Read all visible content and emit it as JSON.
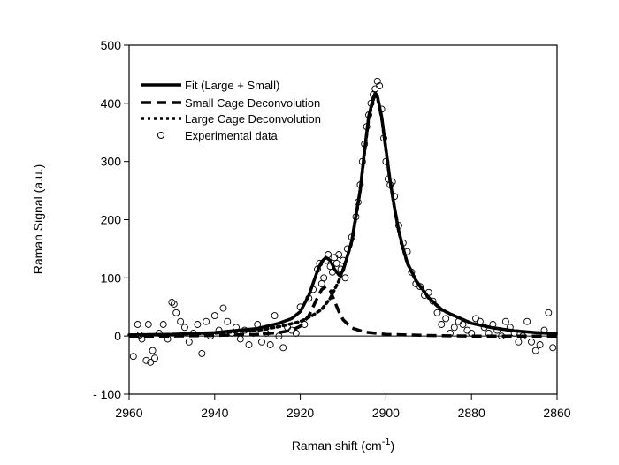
{
  "chart_data": {
    "type": "line",
    "title": "",
    "xlabel": "Raman shift (cm",
    "xlabel_sup": "-1",
    "xlabel_close": ")",
    "ylabel": "Raman Signal (a.u.)",
    "xlim": [
      2960,
      2860
    ],
    "ylim": [
      -100,
      500
    ],
    "x_ticks": [
      2960,
      2940,
      2920,
      2900,
      2880,
      2860
    ],
    "y_ticks": [
      -100,
      0,
      100,
      200,
      300,
      400,
      500
    ],
    "x_tick_labels": [
      "2960",
      "2940",
      "2920",
      "2900",
      "2880",
      "2860"
    ],
    "y_tick_labels": [
      "- 100",
      "0",
      "100",
      "200",
      "300",
      "400",
      "500"
    ],
    "grid": false,
    "legend_position": "top-left",
    "legend": [
      {
        "label": "Fit (Large + Small)",
        "style": "solid"
      },
      {
        "label": "Small Cage Deconvolution",
        "style": "dashed"
      },
      {
        "label": "Large Cage Deconvolution",
        "style": "dotted"
      },
      {
        "label": "Experimental data",
        "style": "marker"
      }
    ],
    "series": [
      {
        "name": "Small Cage Deconvolution",
        "style": "dashed",
        "x": [
          2960,
          2950,
          2940,
          2930,
          2925,
          2922,
          2920,
          2918,
          2916,
          2915,
          2914,
          2913,
          2912,
          2911,
          2910,
          2908,
          2905,
          2900,
          2890,
          2880,
          2870,
          2860
        ],
        "y": [
          0,
          0,
          1,
          3,
          6,
          10,
          17,
          35,
          66,
          80,
          85,
          78,
          60,
          42,
          28,
          14,
          7,
          3,
          1,
          0,
          0,
          0
        ]
      },
      {
        "name": "Large Cage Deconvolution",
        "style": "dotted",
        "x": [
          2960,
          2950,
          2940,
          2930,
          2925,
          2920,
          2917,
          2915,
          2913,
          2911,
          2910,
          2908,
          2906,
          2905,
          2904,
          2903,
          2902.5,
          2902,
          2901,
          2900,
          2899,
          2898,
          2897,
          2896,
          2895,
          2893,
          2890,
          2887,
          2885,
          2880,
          2875,
          2870,
          2865,
          2860
        ],
        "y": [
          2,
          3,
          5,
          10,
          16,
          25,
          36,
          46,
          65,
          95,
          115,
          160,
          250,
          315,
          375,
          405,
          415,
          410,
          375,
          320,
          265,
          220,
          180,
          150,
          125,
          95,
          65,
          45,
          38,
          22,
          14,
          9,
          6,
          4
        ]
      },
      {
        "name": "Fit (Large + Small)",
        "style": "solid",
        "x": [
          2960,
          2950,
          2940,
          2930,
          2925,
          2922,
          2920,
          2918,
          2916,
          2915,
          2914,
          2913,
          2912,
          2911,
          2910,
          2908,
          2906,
          2905,
          2904,
          2903,
          2902.5,
          2902,
          2901,
          2900,
          2899,
          2898,
          2897,
          2896,
          2895,
          2893,
          2890,
          2887,
          2885,
          2880,
          2875,
          2870,
          2865,
          2860
        ],
        "y": [
          2,
          3,
          6,
          13,
          22,
          30,
          42,
          70,
          112,
          128,
          135,
          130,
          115,
          105,
          112,
          163,
          252,
          318,
          378,
          408,
          418,
          413,
          377,
          322,
          266,
          221,
          181,
          151,
          126,
          96,
          66,
          46,
          38,
          22,
          14,
          9,
          6,
          4
        ]
      }
    ],
    "experimental_data": {
      "name": "Experimental data",
      "x": [
        2959,
        2958,
        2957.5,
        2957,
        2956,
        2955.5,
        2955,
        2954.5,
        2954,
        2953,
        2952,
        2951,
        2950,
        2949.5,
        2949,
        2948,
        2947,
        2946,
        2945,
        2944,
        2943,
        2942,
        2941,
        2940,
        2939,
        2938,
        2937,
        2936,
        2935,
        2934,
        2933,
        2932,
        2931,
        2930,
        2929,
        2928,
        2927,
        2926,
        2925,
        2924,
        2923,
        2922,
        2921,
        2920,
        2919,
        2918,
        2917,
        2916,
        2915.5,
        2915,
        2914.5,
        2914,
        2913.5,
        2913,
        2912.5,
        2912,
        2911.5,
        2911,
        2910.5,
        2910,
        2909.5,
        2909,
        2908,
        2907,
        2906.5,
        2906,
        2905.5,
        2905,
        2904.5,
        2904,
        2903.5,
        2903,
        2902.5,
        2902,
        2901.5,
        2901,
        2900.5,
        2900,
        2899.5,
        2899,
        2898.5,
        2898,
        2897,
        2896,
        2895,
        2894,
        2893,
        2892,
        2891,
        2890,
        2889,
        2888,
        2887,
        2886,
        2885,
        2884,
        2883,
        2882,
        2881,
        2880,
        2879,
        2878,
        2877,
        2876,
        2875,
        2874,
        2873,
        2872,
        2871,
        2870,
        2869,
        2868,
        2867,
        2866,
        2865,
        2864,
        2863,
        2862,
        2861
      ],
      "y": [
        -35,
        20,
        2,
        -5,
        -42,
        20,
        -45,
        -25,
        -38,
        5,
        20,
        -5,
        58,
        55,
        40,
        25,
        15,
        -10,
        5,
        20,
        -30,
        25,
        0,
        35,
        10,
        48,
        25,
        5,
        15,
        -5,
        10,
        -15,
        5,
        20,
        -10,
        5,
        -15,
        35,
        0,
        -20,
        15,
        10,
        5,
        50,
        20,
        65,
        80,
        115,
        125,
        90,
        100,
        130,
        140,
        120,
        110,
        135,
        125,
        140,
        115,
        130,
        100,
        150,
        170,
        205,
        230,
        260,
        300,
        330,
        360,
        380,
        400,
        415,
        425,
        438,
        430,
        390,
        340,
        300,
        270,
        260,
        265,
        240,
        190,
        160,
        145,
        110,
        90,
        85,
        70,
        75,
        60,
        40,
        20,
        30,
        5,
        15,
        25,
        20,
        10,
        5,
        30,
        25,
        15,
        5,
        20,
        10,
        0,
        25,
        15,
        5,
        -10,
        0,
        25,
        -10,
        -25,
        -15,
        10,
        40,
        -20
      ]
    }
  }
}
